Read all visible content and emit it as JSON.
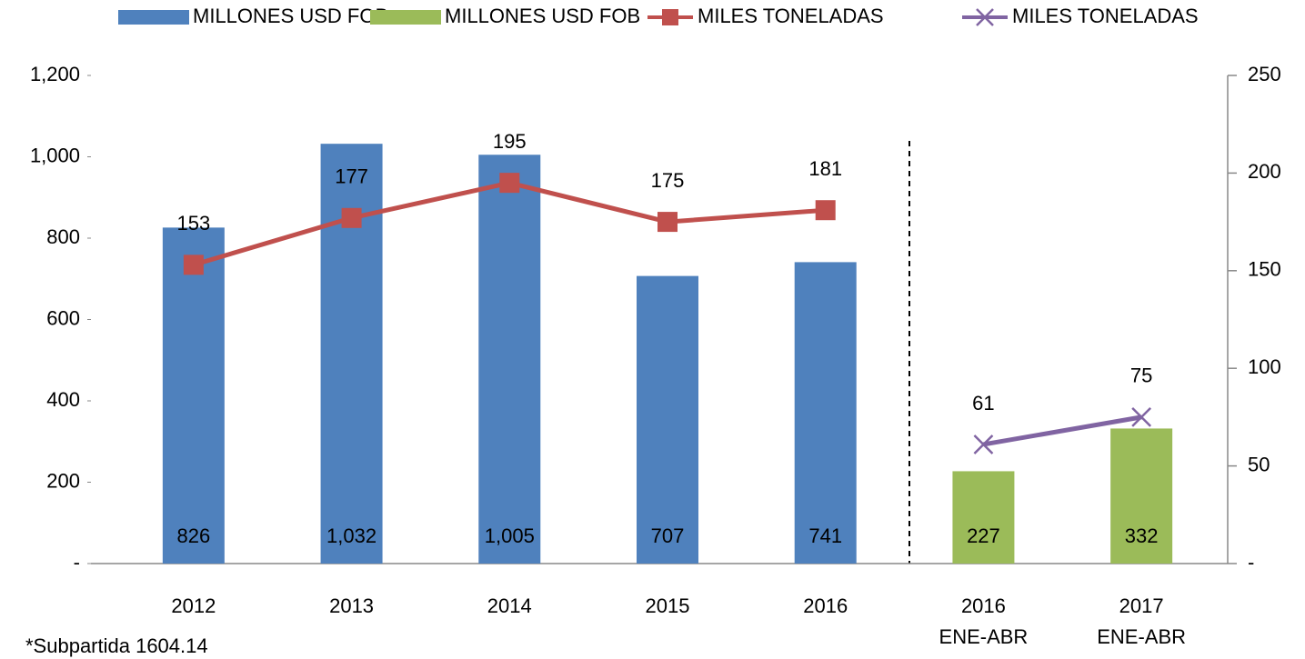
{
  "chart_data": {
    "type": "bar",
    "categories": [
      "2012",
      "2013",
      "2014",
      "2015",
      "2016",
      [
        "2016",
        "ENE-ABR"
      ],
      [
        "2017",
        "ENE-ABR"
      ]
    ],
    "series": [
      {
        "name": "MILLONES USD FOB",
        "type": "bar",
        "color": "#4f81bd",
        "values": [
          826,
          1032,
          1005,
          707,
          741,
          null,
          null
        ],
        "value_labels": [
          "826",
          "1,032",
          "1,005",
          "707",
          "741",
          null,
          null
        ]
      },
      {
        "name": "MILLONES USD FOB",
        "type": "bar",
        "color": "#9bbb59",
        "values": [
          null,
          null,
          null,
          null,
          null,
          227,
          332
        ]
      },
      {
        "name": "MILES TONELADAS",
        "type": "line",
        "marker": "square",
        "axis": "y2",
        "color": "#c0504d",
        "values": [
          153,
          177,
          195,
          175,
          181,
          null,
          null
        ]
      },
      {
        "name": "MILES TONELADAS",
        "type": "line",
        "marker": "x",
        "axis": "y2",
        "color": "#8064a2",
        "values": [
          null,
          null,
          null,
          null,
          null,
          61,
          75
        ]
      }
    ],
    "ylim": [
      0,
      1200
    ],
    "yticks": [
      {
        "value": 0,
        "label": "-"
      },
      200,
      400,
      600,
      800,
      {
        "value": 1000,
        "label": "1,000"
      },
      {
        "value": 1200,
        "label": "1,200"
      }
    ],
    "y2lim": [
      0,
      250
    ],
    "y2ticks": [
      {
        "value": 0,
        "label": "-"
      },
      50,
      100,
      150,
      200,
      250
    ],
    "legend": "top",
    "note": "*Subpartida 1604.14"
  }
}
